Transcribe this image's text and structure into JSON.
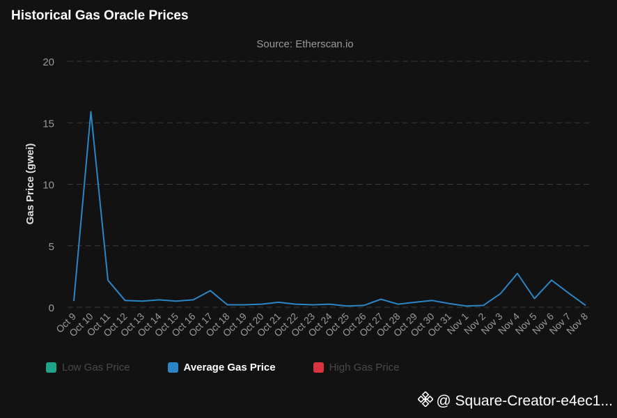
{
  "header": {
    "title": "Historical Gas Oracle Prices"
  },
  "chart_data": {
    "type": "line",
    "title": "Historical Gas Oracle Prices",
    "subtitle": "Source: Etherscan.io",
    "xlabel": "",
    "ylabel": "Gas Price (gwei)",
    "ylim": [
      0,
      20
    ],
    "yticks": [
      0,
      5,
      10,
      15,
      20
    ],
    "grid": true,
    "categories": [
      "Oct 9",
      "Oct 10",
      "Oct 11",
      "Oct 12",
      "Oct 13",
      "Oct 14",
      "Oct 15",
      "Oct 16",
      "Oct 17",
      "Oct 18",
      "Oct 19",
      "Oct 20",
      "Oct 21",
      "Oct 22",
      "Oct 23",
      "Oct 24",
      "Oct 25",
      "Oct 26",
      "Oct 27",
      "Oct 28",
      "Oct 29",
      "Oct 30",
      "Oct 31",
      "Nov 1",
      "Nov 2",
      "Nov 3",
      "Nov 4",
      "Nov 5",
      "Nov 6",
      "Nov 7",
      "Nov 8"
    ],
    "series": [
      {
        "name": "Average Gas Price",
        "color": "#2b86c5",
        "visible": true,
        "values": [
          0.5,
          15.9,
          2.2,
          0.55,
          0.5,
          0.6,
          0.5,
          0.6,
          1.35,
          0.2,
          0.2,
          0.25,
          0.4,
          0.25,
          0.2,
          0.25,
          0.1,
          0.15,
          0.65,
          0.25,
          0.4,
          0.55,
          0.3,
          0.1,
          0.15,
          1.1,
          2.75,
          0.7,
          2.2,
          1.15,
          0.15
        ]
      }
    ],
    "legend": [
      {
        "name": "Low Gas Price",
        "color": "#20a489",
        "active": false
      },
      {
        "name": "Average Gas Price",
        "color": "#2b86c5",
        "active": true
      },
      {
        "name": "High Gas Price",
        "color": "#d9343f",
        "active": false
      }
    ],
    "legend_position": "bottom-left"
  },
  "watermark": {
    "text": "@ Square-Creator-e4ec1...",
    "icon": "binance-logo-icon"
  }
}
